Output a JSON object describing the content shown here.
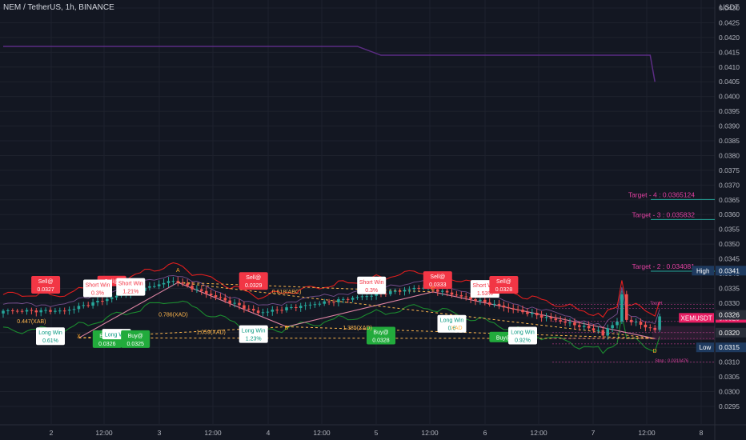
{
  "header": {
    "symbol": "NEM / TetherUS, 1h, BINANCE"
  },
  "axis": {
    "unit": "USDT"
  },
  "chart_data": {
    "type": "candlestick",
    "title": "NEM / TetherUS, 1h, BINANCE",
    "ylim": [
      0.0295,
      0.043
    ],
    "y_ticks": [
      "0.0430",
      "0.0425",
      "0.0420",
      "0.0415",
      "0.0410",
      "0.0405",
      "0.0400",
      "0.0395",
      "0.0390",
      "0.0385",
      "0.0380",
      "0.0375",
      "0.0370",
      "0.0365",
      "0.0360",
      "0.0355",
      "0.0350",
      "0.0345",
      "0.0340",
      "0.0335",
      "0.0330",
      "0.0325",
      "0.0320",
      "0.0315",
      "0.0310",
      "0.0305",
      "0.0300",
      "0.0295"
    ],
    "x_ticks": [
      "2",
      "12:00",
      "3",
      "12:00",
      "4",
      "12:00",
      "5",
      "12:00",
      "6",
      "12:00",
      "7",
      "12:00",
      "8"
    ],
    "price_tags": [
      {
        "text": "High",
        "value": "0.0341",
        "bg": "#1e3a5f"
      },
      {
        "text": "XEMUSDT",
        "value": "0.0325",
        "bg": "#e91e63"
      },
      {
        "text": "",
        "value": "0.0326",
        "bg": "#2a2e39"
      },
      {
        "text": "",
        "value": "0.0320",
        "bg": "#2a2e39"
      },
      {
        "text": "Low",
        "value": "0.0315",
        "bg": "#1e3a5f"
      }
    ],
    "targets": [
      {
        "text": "Target - 4 : 0.0365124",
        "value": 0.0365124
      },
      {
        "text": "Target - 3 : 0.035832",
        "value": 0.035832
      },
      {
        "text": "Target - 2 : 0.034081",
        "value": 0.034081
      }
    ],
    "purple_line": [
      [
        0,
        0.0417
      ],
      [
        75,
        0.0417
      ],
      [
        80,
        0.0414
      ],
      [
        137,
        0.0414
      ],
      [
        138,
        0.0405
      ]
    ],
    "callouts": [
      {
        "text": "Sell@",
        "sub": "0.0327",
        "type": "sell",
        "i": 9,
        "v": 0.03362
      },
      {
        "text": "Sell@",
        "sub": "",
        "type": "sell",
        "i": 23,
        "v": 0.03375
      },
      {
        "text": "Short Win",
        "sub": "0.3%",
        "type": "short",
        "i": 20,
        "v": 0.0335
      },
      {
        "text": "Short Win",
        "sub": "1.21%",
        "type": "short",
        "i": 27,
        "v": 0.03355
      },
      {
        "text": "Sell@",
        "sub": "0.0329",
        "type": "sell",
        "i": 53,
        "v": 0.03375
      },
      {
        "text": "Short Win",
        "sub": "0.3%",
        "type": "short",
        "i": 78,
        "v": 0.0336
      },
      {
        "text": "Sell@",
        "sub": "0.0333",
        "type": "sell",
        "i": 92,
        "v": 0.03378
      },
      {
        "text": "Short Win",
        "sub": "1.53%",
        "type": "short",
        "i": 102,
        "v": 0.03348
      },
      {
        "text": "Sell@",
        "sub": "0.0328",
        "type": "sell",
        "i": 106,
        "v": 0.03362
      },
      {
        "text": "Long Win",
        "sub": "0.61%",
        "type": "long",
        "i": 10,
        "v": 0.03188
      },
      {
        "text": "Buy@",
        "sub": "0.0326",
        "type": "buy",
        "i": 22,
        "v": 0.03178
      },
      {
        "text": "Long Win",
        "sub": "",
        "type": "long",
        "i": 24,
        "v": 0.03195
      },
      {
        "text": "Buy@",
        "sub": "0.0325",
        "type": "buy",
        "i": 28,
        "v": 0.03178
      },
      {
        "text": "Long Win",
        "sub": "1.23%",
        "type": "long",
        "i": 53,
        "v": 0.03195
      },
      {
        "text": "Buy@",
        "sub": "0.0328",
        "type": "buy",
        "i": 80,
        "v": 0.0319
      },
      {
        "text": "Long Win",
        "sub": "0.6",
        "type": "long",
        "i": 95,
        "v": 0.0323
      },
      {
        "text": "Buy@",
        "sub": "",
        "type": "buy",
        "i": 106,
        "v": 0.03185
      },
      {
        "text": "Long Win",
        "sub": "0.92%",
        "type": "long",
        "i": 110,
        "v": 0.0319
      }
    ],
    "pattern_labels": [
      {
        "text": "A",
        "i": 37,
        "v": 0.03405,
        "color": "#ffa726"
      },
      {
        "text": "B",
        "i": 60,
        "v": 0.0321,
        "color": "#ffa726"
      },
      {
        "text": "C",
        "i": 91,
        "v": 0.03342,
        "color": "#ffa726"
      },
      {
        "text": "D",
        "i": 138,
        "v": 0.03132,
        "color": "#ffa726"
      },
      {
        "text": "X",
        "i": 16,
        "v": 0.03182,
        "color": "#ffa726"
      }
    ],
    "fib_labels": [
      {
        "text": "0.618(ABC)",
        "i": 60,
        "v": 0.03332
      },
      {
        "text": "0.786(XAD)",
        "i": 36,
        "v": 0.03255
      },
      {
        "text": "1.059(XAD)",
        "i": 44,
        "v": 0.03195
      },
      {
        "text": "1.385(XAD)",
        "i": 75,
        "v": 0.0321
      },
      {
        "text": "0.447(XAB)",
        "i": 6,
        "v": 0.03232
      },
      {
        "text": "XAD",
        "i": 96,
        "v": 0.0321
      }
    ],
    "small_labels": [
      {
        "text": "Target",
        "i": 137,
        "v": 0.03296
      },
      {
        "text": "Stop : 0.0310476",
        "i": 138,
        "v": 0.031
      }
    ]
  }
}
